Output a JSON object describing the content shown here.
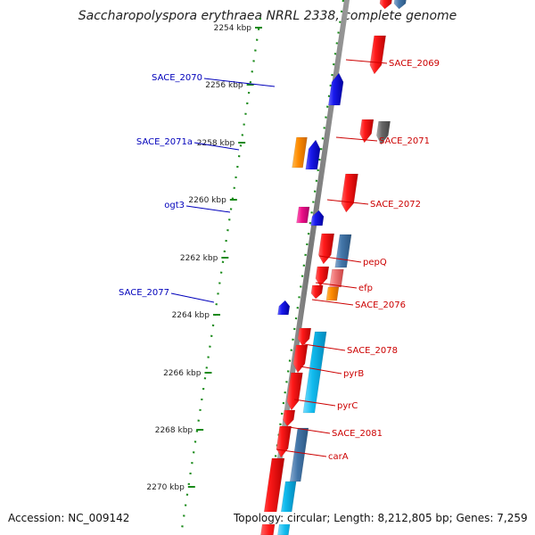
{
  "title": "Saccharopolyspora erythraea NRRL 2338, complete genome",
  "accession": "Accession: NC_009142",
  "topology": "Topology: circular; Length: 8,212,805 bp; Genes: 7,259",
  "colors": {
    "forward_label": "#0000bb",
    "reverse_label": "#cc0000",
    "red_gene": "#ee0000",
    "blue_gene": "#1111dd",
    "orange_gene": "#ff8800",
    "magenta_gene": "#ee1188",
    "steel_gene": "#4477aa",
    "cyan_gene": "#11bbee",
    "salmon_gene": "#ee6666",
    "gray_gene": "#666666",
    "dot_green": "#1a8a1a",
    "backbone": "#888888"
  },
  "kbp_ticks": [
    "2254 kbp",
    "2256 kbp",
    "2258 kbp",
    "2260 kbp",
    "2262 kbp",
    "2264 kbp",
    "2266 kbp",
    "2268 kbp",
    "2270 kbp"
  ],
  "left_labels": [
    "SACE_2070",
    "SACE_2071a",
    "ogt3",
    "SACE_2077"
  ],
  "right_labels": [
    "SACE_2069",
    "SACE_2071",
    "SACE_2072",
    "pepQ",
    "efp",
    "SACE_2076",
    "SACE_2078",
    "pyrB",
    "pyrC",
    "SACE_2081",
    "carA"
  ]
}
